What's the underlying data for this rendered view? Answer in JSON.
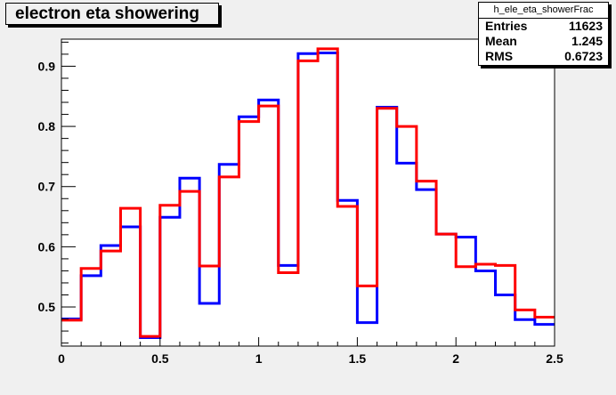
{
  "chart_data": {
    "type": "histogram",
    "title": "electron eta showering",
    "stats": {
      "name": "h_ele_eta_showerFrac",
      "entries_label": "Entries",
      "entries_value": "11623",
      "mean_label": "Mean",
      "mean_value": "1.245",
      "rms_label": "RMS",
      "rms_value": "0.6723"
    },
    "xlim": [
      0,
      2.5
    ],
    "ylim": [
      0.435,
      0.945
    ],
    "x_ticks": [
      {
        "v": 0,
        "label": "0"
      },
      {
        "v": 0.5,
        "label": "0.5"
      },
      {
        "v": 1,
        "label": "1"
      },
      {
        "v": 1.5,
        "label": "1.5"
      },
      {
        "v": 2,
        "label": "2"
      },
      {
        "v": 2.5,
        "label": "2.5"
      }
    ],
    "y_ticks": [
      {
        "v": 0.5,
        "label": "0.5"
      },
      {
        "v": 0.6,
        "label": "0.6"
      },
      {
        "v": 0.7,
        "label": "0.7"
      },
      {
        "v": 0.8,
        "label": "0.8"
      },
      {
        "v": 0.9,
        "label": "0.9"
      }
    ],
    "bin_edges": [
      0,
      0.1,
      0.2,
      0.3,
      0.4,
      0.5,
      0.6,
      0.7,
      0.8,
      0.9,
      1.0,
      1.1,
      1.2,
      1.3,
      1.4,
      1.5,
      1.6,
      1.7,
      1.8,
      1.9,
      2.0,
      2.1,
      2.2,
      2.3,
      2.4,
      2.5
    ],
    "series": [
      {
        "color": "#0000ff",
        "values": [
          0.48,
          0.552,
          0.602,
          0.633,
          0.449,
          0.649,
          0.714,
          0.506,
          0.737,
          0.816,
          0.844,
          0.569,
          0.921,
          0.922,
          0.677,
          0.474,
          0.832,
          0.739,
          0.695,
          0.621,
          0.616,
          0.56,
          0.52,
          0.479,
          0.471
        ]
      },
      {
        "color": "#ff0000",
        "values": [
          0.478,
          0.564,
          0.593,
          0.664,
          0.451,
          0.669,
          0.692,
          0.568,
          0.716,
          0.808,
          0.834,
          0.557,
          0.909,
          0.929,
          0.667,
          0.535,
          0.83,
          0.8,
          0.709,
          0.621,
          0.567,
          0.571,
          0.569,
          0.495,
          0.483
        ]
      }
    ]
  }
}
